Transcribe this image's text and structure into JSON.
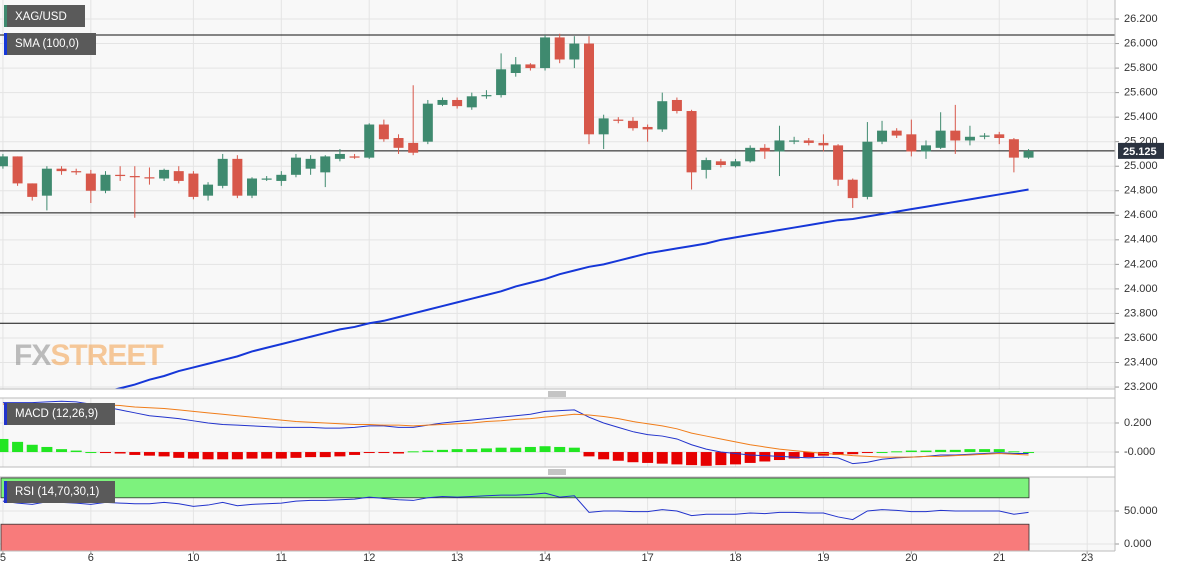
{
  "chart_data": [
    {
      "type": "candlestick",
      "x": [
        0,
        1,
        2,
        3,
        4,
        5,
        6,
        7,
        8,
        9,
        10,
        11,
        12,
        13,
        14,
        15,
        16,
        17,
        18,
        19,
        20,
        21,
        22,
        23,
        24,
        25,
        26,
        27,
        28,
        29,
        30,
        31,
        32,
        33,
        34,
        35,
        36,
        37,
        38,
        39,
        40,
        41,
        42,
        43,
        44,
        45,
        46,
        47,
        48,
        49,
        50,
        51,
        52,
        53,
        54,
        55,
        56,
        57,
        58,
        59,
        60,
        61,
        62,
        63,
        64,
        65,
        66,
        67,
        68,
        69,
        70
      ],
      "xlim": [
        -0.2,
        75.9
      ],
      "ylim": [
        23.184,
        26.355
      ],
      "yticks": [
        {
          "value": 26.2,
          "label": "26.200"
        },
        {
          "value": 26.0,
          "label": "26.000"
        },
        {
          "value": 25.8,
          "label": "25.800"
        },
        {
          "value": 25.6,
          "label": "25.600"
        },
        {
          "value": 25.4,
          "label": "25.400"
        },
        {
          "value": 25.2,
          "label": "25.200"
        },
        {
          "value": 25.0,
          "label": "25.000"
        },
        {
          "value": 24.8,
          "label": "24.800"
        },
        {
          "value": 24.6,
          "label": "24.600"
        },
        {
          "value": 24.4,
          "label": "24.400"
        },
        {
          "value": 24.2,
          "label": "24.200"
        },
        {
          "value": 24.0,
          "label": "24.000"
        },
        {
          "value": 23.8,
          "label": "23.800"
        },
        {
          "value": 23.6,
          "label": "23.600"
        },
        {
          "value": 23.4,
          "label": "23.400"
        },
        {
          "value": 23.2,
          "label": "23.200"
        }
      ],
      "grid": true,
      "levels": [
        26.07,
        24.62,
        23.72
      ],
      "last_price": 25.125,
      "watermark": [
        "FX",
        "STREET"
      ],
      "series": [
        {
          "name": "XAG/USD",
          "type": "candlestick",
          "color": "#3f8a6f",
          "up_color": "#3f8a6f",
          "down_color": "#d7574a",
          "open": [
            25.0,
            25.08,
            24.86,
            24.76,
            24.98,
            24.96,
            24.94,
            24.8,
            24.93,
            24.92,
            24.91,
            24.9,
            24.96,
            24.94,
            24.76,
            24.84,
            25.06,
            24.76,
            24.89,
            24.88,
            24.93,
            24.98,
            24.95,
            25.06,
            25.08,
            25.07,
            25.34,
            25.23,
            25.19,
            25.2,
            25.5,
            25.54,
            25.48,
            25.57,
            25.58,
            25.76,
            25.83,
            25.8,
            26.05,
            25.87,
            26.0,
            25.26,
            25.38,
            25.37,
            25.32,
            25.3,
            25.54,
            25.45,
            24.97,
            25.04,
            25.0,
            25.04,
            25.15,
            25.12,
            25.2,
            25.21,
            25.19,
            25.17,
            24.89,
            24.75,
            25.2,
            25.29,
            25.26,
            25.12,
            25.15,
            25.29,
            25.21,
            25.24,
            25.26,
            25.22,
            25.07
          ],
          "high": [
            25.1,
            25.08,
            24.86,
            25.0,
            25.0,
            24.98,
            24.97,
            24.96,
            25.0,
            25.0,
            24.99,
            24.98,
            25.0,
            24.96,
            24.87,
            25.1,
            25.09,
            24.91,
            24.92,
            24.96,
            25.1,
            25.09,
            25.09,
            25.14,
            25.1,
            25.35,
            25.38,
            25.26,
            25.66,
            25.54,
            25.56,
            25.56,
            25.6,
            25.62,
            25.92,
            25.89,
            25.84,
            26.07,
            26.08,
            26.06,
            26.06,
            25.42,
            25.4,
            25.4,
            25.34,
            25.6,
            25.56,
            25.46,
            25.07,
            25.06,
            25.06,
            25.17,
            25.18,
            25.33,
            25.24,
            25.23,
            25.26,
            25.18,
            24.9,
            25.36,
            25.37,
            25.31,
            25.38,
            25.21,
            25.44,
            25.5,
            25.33,
            25.27,
            25.28,
            25.23,
            25.14
          ],
          "low": [
            24.98,
            24.84,
            24.72,
            24.64,
            24.93,
            24.93,
            24.7,
            24.78,
            24.88,
            24.58,
            24.85,
            24.88,
            24.86,
            24.73,
            24.72,
            24.82,
            24.74,
            24.74,
            24.88,
            24.84,
            24.91,
            24.93,
            24.83,
            25.04,
            25.06,
            25.06,
            25.2,
            25.1,
            25.09,
            25.18,
            25.49,
            25.47,
            25.46,
            25.55,
            25.56,
            25.73,
            25.78,
            25.78,
            25.84,
            25.8,
            25.18,
            25.14,
            25.35,
            25.29,
            25.2,
            25.28,
            25.43,
            24.81,
            24.9,
            24.99,
            24.99,
            25.03,
            25.06,
            24.92,
            25.18,
            25.17,
            25.12,
            24.84,
            24.66,
            24.73,
            25.18,
            25.23,
            25.08,
            25.06,
            25.14,
            25.1,
            25.17,
            25.22,
            25.18,
            24.95,
            25.06
          ],
          "close": [
            25.08,
            24.86,
            24.75,
            24.98,
            24.96,
            24.95,
            24.8,
            24.93,
            24.92,
            24.91,
            24.9,
            24.97,
            24.88,
            24.75,
            24.85,
            25.06,
            24.76,
            24.9,
            24.9,
            24.93,
            25.07,
            25.06,
            25.08,
            25.1,
            25.07,
            25.34,
            25.22,
            25.15,
            25.11,
            25.51,
            25.54,
            25.49,
            25.57,
            25.58,
            25.79,
            25.83,
            25.8,
            26.05,
            25.87,
            26.0,
            25.26,
            25.39,
            25.37,
            25.31,
            25.3,
            25.53,
            25.45,
            24.95,
            25.05,
            25.01,
            25.04,
            25.15,
            25.12,
            25.21,
            25.21,
            25.19,
            25.17,
            24.89,
            24.74,
            25.2,
            25.29,
            25.25,
            25.12,
            25.17,
            25.29,
            25.21,
            25.24,
            25.25,
            25.23,
            25.07,
            25.125
          ]
        },
        {
          "name": "SMA (100,0)",
          "type": "line",
          "color": "#1637d8",
          "values": [
            null,
            null,
            null,
            null,
            null,
            null,
            null,
            23.16,
            23.19,
            23.22,
            23.26,
            23.29,
            23.33,
            23.36,
            23.39,
            23.42,
            23.45,
            23.49,
            23.52,
            23.55,
            23.58,
            23.61,
            23.64,
            23.67,
            23.69,
            23.72,
            23.74,
            23.77,
            23.8,
            23.83,
            23.86,
            23.89,
            23.92,
            23.95,
            23.98,
            24.02,
            24.05,
            24.08,
            24.12,
            24.15,
            24.18,
            24.2,
            24.23,
            24.26,
            24.29,
            24.31,
            24.33,
            24.35,
            24.37,
            24.4,
            24.42,
            24.44,
            24.46,
            24.48,
            24.5,
            24.52,
            24.54,
            24.56,
            24.57,
            24.59,
            24.61,
            24.63,
            24.65,
            24.67,
            24.69,
            24.71,
            24.73,
            24.75,
            24.77,
            24.79,
            24.81
          ]
        }
      ]
    },
    {
      "type": "line",
      "title": "MACD (12,26,9)",
      "x": [
        0,
        1,
        2,
        3,
        4,
        5,
        6,
        7,
        8,
        9,
        10,
        11,
        12,
        13,
        14,
        15,
        16,
        17,
        18,
        19,
        20,
        21,
        22,
        23,
        24,
        25,
        26,
        27,
        28,
        29,
        30,
        31,
        32,
        33,
        34,
        35,
        36,
        37,
        38,
        39,
        40,
        41,
        42,
        43,
        44,
        45,
        46,
        47,
        48,
        49,
        50,
        51,
        52,
        53,
        54,
        55,
        56,
        57,
        58,
        59,
        60,
        61,
        62,
        63,
        64,
        65,
        66,
        67,
        68,
        69,
        70
      ],
      "xlim": [
        -0.2,
        75.9
      ],
      "ylim": [
        -0.103,
        0.372
      ],
      "yticks": [
        {
          "value": 0.2,
          "label": "0.200"
        },
        {
          "value": 0,
          "label": "-0.000"
        }
      ],
      "series": [
        {
          "type": "bar",
          "positive_color": "#22e622",
          "negative_color": "#e60000",
          "values": [
            0.09,
            0.07,
            0.05,
            0.035,
            0.02,
            0.01,
            0.0,
            -0.005,
            -0.01,
            -0.02,
            -0.025,
            -0.03,
            -0.04,
            -0.045,
            -0.05,
            -0.05,
            -0.05,
            -0.045,
            -0.045,
            -0.045,
            -0.04,
            -0.035,
            -0.035,
            -0.03,
            -0.02,
            -0.005,
            -0.005,
            -0.01,
            0.005,
            0.01,
            0.015,
            0.02,
            0.02,
            0.025,
            0.03,
            0.03,
            0.035,
            0.04,
            0.035,
            0.03,
            -0.03,
            -0.05,
            -0.06,
            -0.07,
            -0.075,
            -0.08,
            -0.085,
            -0.09,
            -0.095,
            -0.09,
            -0.085,
            -0.075,
            -0.065,
            -0.055,
            -0.045,
            -0.035,
            -0.025,
            -0.02,
            -0.015,
            -0.005,
            0.0,
            0.005,
            0.01,
            0.01,
            0.015,
            0.015,
            0.02,
            0.02,
            0.02,
            0.005,
            0.0
          ]
        },
        {
          "type": "line",
          "color": "#2233cc",
          "values": [
            0.34,
            0.34,
            0.34,
            0.345,
            0.35,
            0.345,
            0.33,
            0.31,
            0.29,
            0.27,
            0.25,
            0.24,
            0.23,
            0.215,
            0.2,
            0.19,
            0.185,
            0.18,
            0.175,
            0.17,
            0.17,
            0.17,
            0.165,
            0.165,
            0.17,
            0.18,
            0.18,
            0.17,
            0.17,
            0.185,
            0.2,
            0.21,
            0.22,
            0.23,
            0.24,
            0.25,
            0.26,
            0.28,
            0.285,
            0.29,
            0.24,
            0.2,
            0.17,
            0.14,
            0.12,
            0.11,
            0.09,
            0.05,
            0.02,
            0.0,
            -0.01,
            -0.02,
            -0.025,
            -0.03,
            -0.035,
            -0.04,
            -0.035,
            -0.04,
            -0.08,
            -0.07,
            -0.05,
            -0.04,
            -0.035,
            -0.03,
            -0.02,
            -0.02,
            -0.015,
            -0.01,
            -0.005,
            -0.01,
            -0.01
          ]
        },
        {
          "type": "line",
          "color": "#f07d1a",
          "values": [
            0.33,
            0.33,
            0.33,
            0.33,
            0.33,
            0.33,
            0.33,
            0.325,
            0.32,
            0.31,
            0.305,
            0.3,
            0.29,
            0.28,
            0.27,
            0.26,
            0.25,
            0.24,
            0.23,
            0.22,
            0.21,
            0.205,
            0.2,
            0.195,
            0.19,
            0.19,
            0.185,
            0.185,
            0.18,
            0.185,
            0.19,
            0.195,
            0.2,
            0.21,
            0.215,
            0.225,
            0.23,
            0.24,
            0.25,
            0.26,
            0.255,
            0.245,
            0.23,
            0.21,
            0.195,
            0.18,
            0.16,
            0.13,
            0.11,
            0.09,
            0.07,
            0.05,
            0.035,
            0.02,
            0.01,
            0.0,
            -0.01,
            -0.015,
            -0.025,
            -0.03,
            -0.035,
            -0.035,
            -0.035,
            -0.03,
            -0.03,
            -0.025,
            -0.02,
            -0.015,
            -0.01,
            -0.015,
            -0.02
          ]
        }
      ]
    },
    {
      "type": "line",
      "title": "RSI (14,70,30,1)",
      "x": [
        0,
        1,
        2,
        3,
        4,
        5,
        6,
        7,
        8,
        9,
        10,
        11,
        12,
        13,
        14,
        15,
        16,
        17,
        18,
        19,
        20,
        21,
        22,
        23,
        24,
        25,
        26,
        27,
        28,
        29,
        30,
        31,
        32,
        33,
        34,
        35,
        36,
        37,
        38,
        39,
        40,
        41,
        42,
        43,
        44,
        45,
        46,
        47,
        48,
        49,
        50,
        51,
        52,
        53,
        54,
        55,
        56,
        57,
        58,
        59,
        60,
        61,
        62,
        63,
        64,
        65,
        66,
        67,
        68,
        69,
        70
      ],
      "xlim": [
        -0.2,
        75.9
      ],
      "ylim": [
        -10.6,
        101.5
      ],
      "yticks": [
        {
          "value": 50,
          "label": "50.000"
        },
        {
          "value": 0,
          "label": "0.000"
        }
      ],
      "xticks": [
        {
          "value": 0,
          "label": "5"
        },
        {
          "value": 6,
          "label": "6"
        },
        {
          "value": 13,
          "label": "10"
        },
        {
          "value": 19,
          "label": "11"
        },
        {
          "value": 25,
          "label": "12"
        },
        {
          "value": 31,
          "label": "13"
        },
        {
          "value": 37,
          "label": "14"
        },
        {
          "value": 44,
          "label": "17"
        },
        {
          "value": 50,
          "label": "18"
        },
        {
          "value": 56,
          "label": "19"
        },
        {
          "value": 62,
          "label": "20"
        },
        {
          "value": 68,
          "label": "21"
        },
        {
          "value": 74,
          "label": "23"
        }
      ],
      "overbought": 70,
      "overbought_color": "#7df27d",
      "oversold": 30,
      "oversold_color": "#f87b7b",
      "series": [
        {
          "type": "line",
          "color": "#2233cc",
          "values": [
            65,
            62,
            60,
            64,
            63,
            62,
            60,
            63,
            62,
            61,
            61,
            63,
            61,
            57,
            59,
            63,
            58,
            60,
            61,
            62,
            65,
            66,
            66,
            67,
            68,
            71,
            69,
            67,
            66,
            70,
            72,
            71,
            72,
            73,
            74,
            74,
            75,
            77,
            71,
            73,
            48,
            50,
            50,
            49,
            49,
            52,
            50,
            43,
            45,
            45,
            45,
            47,
            46,
            48,
            48,
            47,
            47,
            41,
            37,
            50,
            52,
            51,
            49,
            49,
            51,
            50,
            50,
            50,
            50,
            45,
            48
          ]
        }
      ]
    }
  ]
}
